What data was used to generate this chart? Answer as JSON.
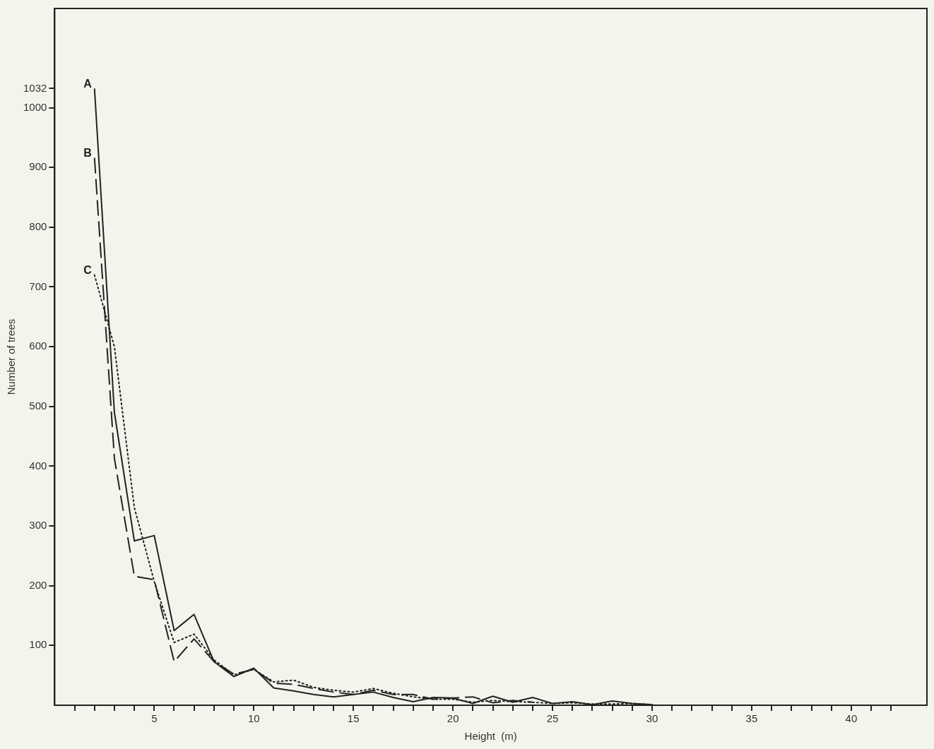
{
  "chart_data": {
    "type": "line",
    "xlabel": "Height  (m)",
    "ylabel": "Number of trees",
    "xlim": [
      0,
      43.8
    ],
    "ylim": [
      0,
      1166
    ],
    "xticks": [
      {
        "value": 1,
        "label": null
      },
      {
        "value": 2,
        "label": null
      },
      {
        "value": 3,
        "label": null
      },
      {
        "value": 4,
        "label": null
      },
      5,
      {
        "value": 6,
        "label": null
      },
      {
        "value": 7,
        "label": null
      },
      {
        "value": 8,
        "label": null
      },
      {
        "value": 9,
        "label": null
      },
      10,
      {
        "value": 11,
        "label": null
      },
      {
        "value": 12,
        "label": null
      },
      {
        "value": 13,
        "label": null
      },
      {
        "value": 14,
        "label": null
      },
      15,
      {
        "value": 16,
        "label": null
      },
      {
        "value": 17,
        "label": null
      },
      {
        "value": 18,
        "label": null
      },
      {
        "value": 19,
        "label": null
      },
      20,
      {
        "value": 21,
        "label": null
      },
      {
        "value": 22,
        "label": null
      },
      {
        "value": 23,
        "label": null
      },
      {
        "value": 24,
        "label": null
      },
      25,
      {
        "value": 26,
        "label": null
      },
      {
        "value": 27,
        "label": null
      },
      {
        "value": 28,
        "label": null
      },
      {
        "value": 29,
        "label": null
      },
      30,
      {
        "value": 31,
        "label": null
      },
      {
        "value": 32,
        "label": null
      },
      {
        "value": 33,
        "label": null
      },
      {
        "value": 34,
        "label": null
      },
      35,
      {
        "value": 36,
        "label": null
      },
      {
        "value": 37,
        "label": null
      },
      {
        "value": 38,
        "label": null
      },
      {
        "value": 39,
        "label": null
      },
      40,
      {
        "value": 41,
        "label": null
      },
      {
        "value": 42,
        "label": null
      }
    ],
    "yticks": [
      100,
      200,
      300,
      400,
      500,
      600,
      700,
      800,
      900,
      1000,
      1032
    ],
    "grid": false,
    "legend": false,
    "marker": "none",
    "series": [
      {
        "name": "A",
        "color": "#222222",
        "line_style": "solid",
        "x": [
          2,
          3,
          4,
          5,
          6,
          7,
          8,
          9,
          10,
          11,
          12,
          13,
          14,
          15,
          16,
          17,
          18,
          19,
          20,
          21,
          22,
          23,
          24,
          25,
          26,
          27,
          28,
          29,
          30
        ],
        "values": [
          1032,
          490,
          275,
          284,
          125,
          152,
          73,
          48,
          62,
          29,
          24,
          18,
          14,
          18,
          22,
          13,
          6,
          13,
          12,
          3,
          15,
          5,
          13,
          3,
          6,
          1,
          7,
          3,
          1
        ]
      },
      {
        "name": "B",
        "color": "#222222",
        "line_style": "dashed",
        "x": [
          2,
          3,
          4,
          5,
          6,
          7,
          8,
          9,
          10,
          11,
          12,
          13,
          14,
          15,
          16,
          17,
          18,
          19,
          20,
          21,
          22,
          23,
          24
        ],
        "values": [
          916,
          413,
          216,
          210,
          73,
          111,
          73,
          52,
          60,
          37,
          35,
          28,
          22,
          18,
          25,
          18,
          18,
          10,
          12,
          14,
          4,
          8,
          5
        ]
      },
      {
        "name": "C",
        "color": "#222222",
        "line_style": "dotted",
        "x": [
          2,
          3,
          4,
          5,
          6,
          7,
          8,
          9,
          10,
          11,
          12,
          13,
          14,
          15,
          16,
          17,
          18,
          19,
          20,
          21,
          22,
          23,
          24,
          25,
          26,
          27,
          28,
          29,
          30
        ],
        "values": [
          720,
          600,
          331,
          207,
          105,
          119,
          76,
          51,
          60,
          39,
          42,
          30,
          25,
          22,
          28,
          20,
          14,
          10,
          10,
          5,
          8,
          6,
          5,
          3,
          4,
          2,
          2,
          3,
          1
        ]
      }
    ]
  }
}
